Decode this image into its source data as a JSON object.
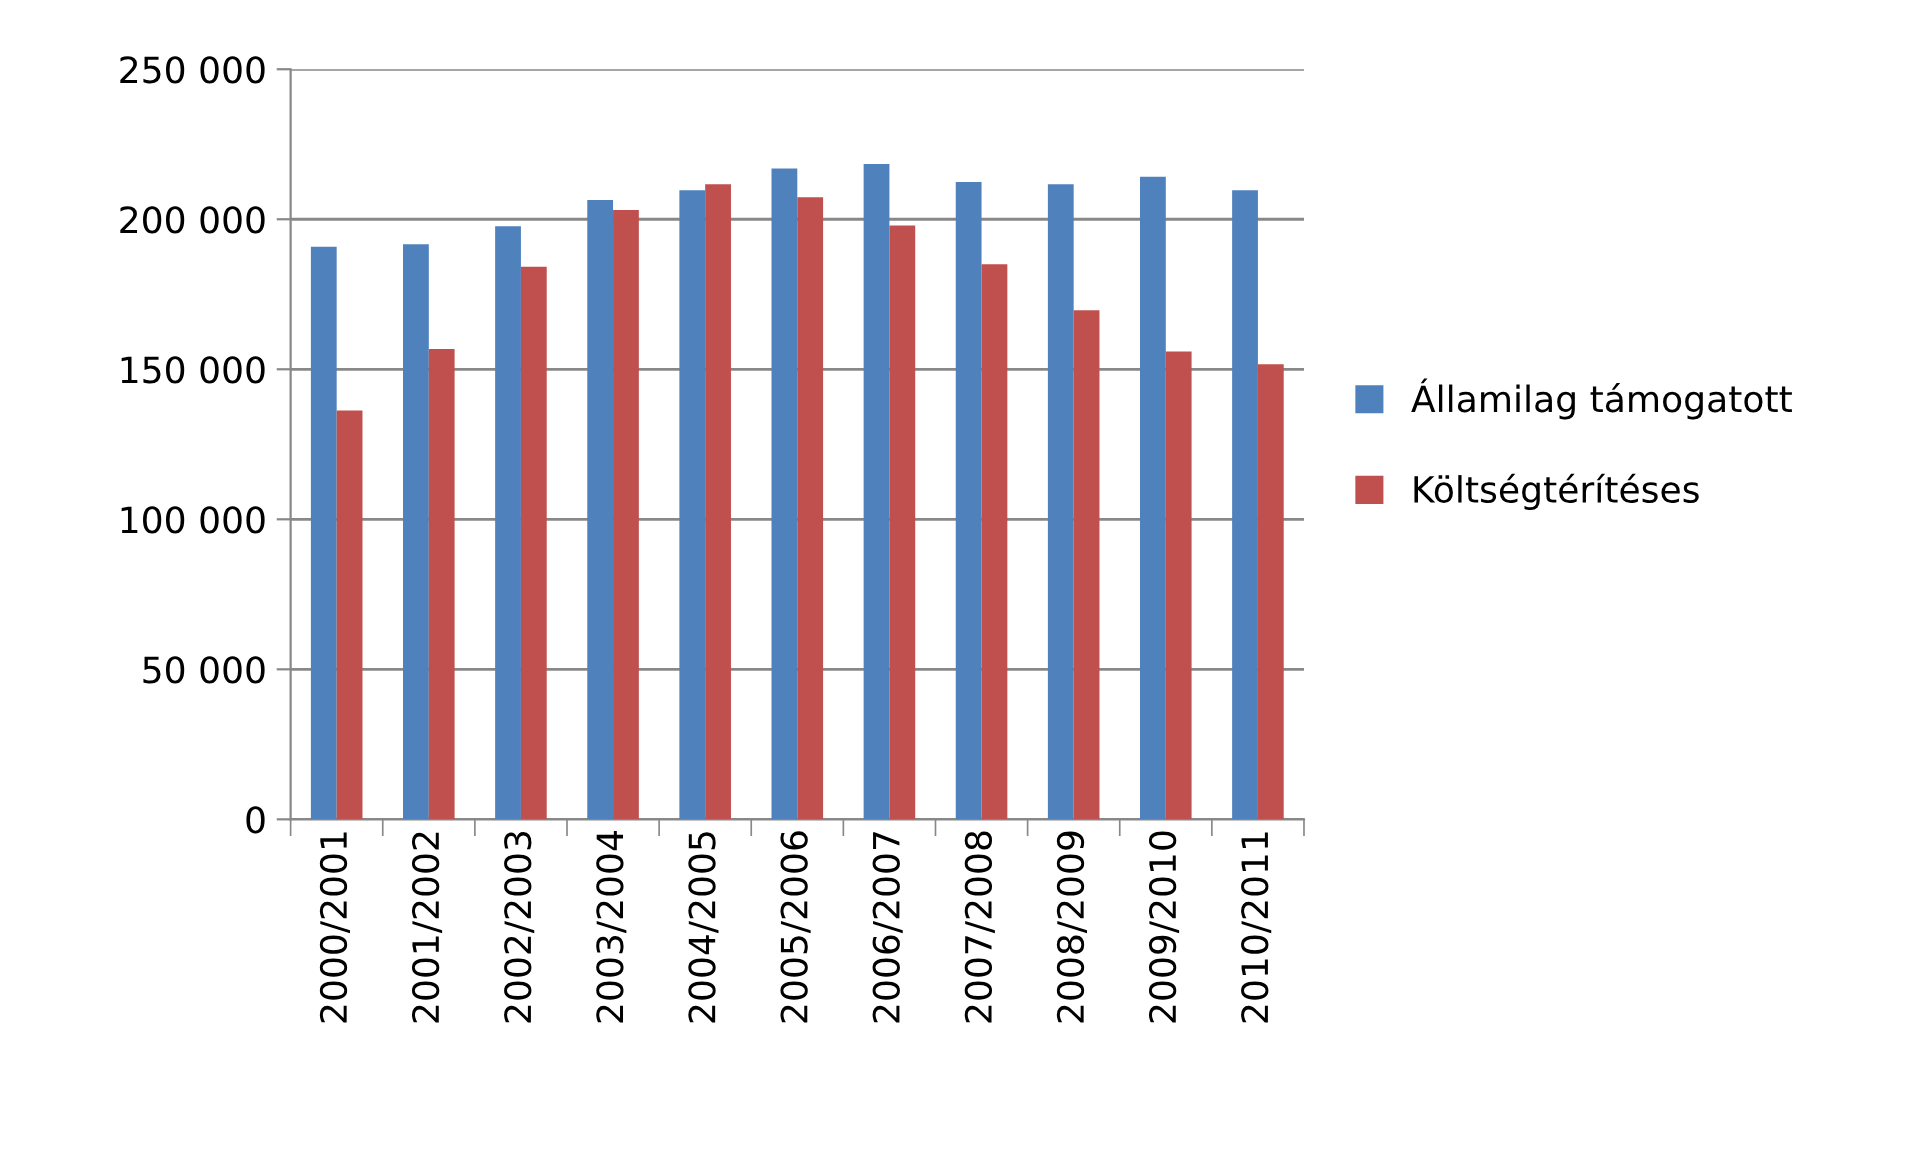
{
  "chart_data": {
    "type": "bar",
    "categories": [
      "2000/2001",
      "2001/2002",
      "2002/2003",
      "2003/2004",
      "2004/2005",
      "2005/2006",
      "2006/2007",
      "2007/2008",
      "2008/2009",
      "2009/2010",
      "2010/2011"
    ],
    "series": [
      {
        "name": "Államilag támogatott",
        "color": "#4f81bd",
        "values": [
          190800,
          191700,
          197700,
          206400,
          209700,
          216900,
          218400,
          212400,
          211700,
          214200,
          209700
        ]
      },
      {
        "name": "Költségtérítéses",
        "color": "#c0504d",
        "values": [
          136300,
          156800,
          184200,
          203100,
          211700,
          207300,
          197900,
          185000,
          169700,
          155900,
          151700
        ]
      }
    ],
    "ylim": [
      0,
      250000
    ],
    "yticks": [
      0,
      {
        "value": 50000,
        "label": "50 000"
      },
      {
        "value": 100000,
        "label": "100 000"
      },
      {
        "value": 150000,
        "label": "150 000"
      },
      {
        "value": 200000,
        "label": "200 000"
      },
      {
        "value": 250000,
        "label": "250 000"
      }
    ],
    "grid": "y",
    "legend": "right"
  }
}
